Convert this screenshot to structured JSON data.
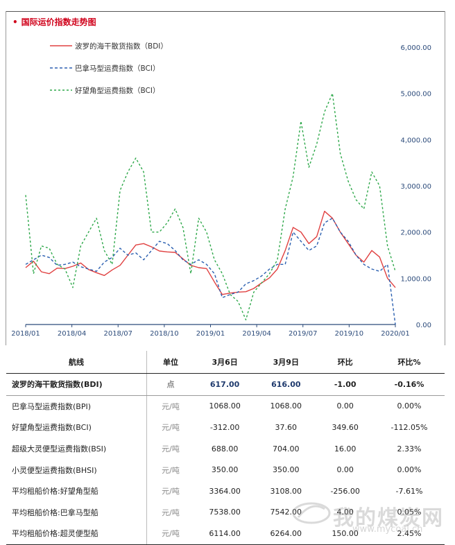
{
  "header": {
    "title": "国际运价指数走势图",
    "bullet": "•"
  },
  "chart_data": {
    "type": "line",
    "x_labels": [
      "2018/01",
      "2018/04",
      "2018/07",
      "2018/10",
      "2019/01",
      "2019/04",
      "2019/07",
      "2019/10",
      "2020/01"
    ],
    "ylim": [
      0,
      6000
    ],
    "y_ticks": [
      "0.00",
      "1,000.00",
      "2,000.00",
      "3,000.00",
      "4,000.00",
      "5,000.00",
      "6,000.00"
    ],
    "y_tick_values": [
      0,
      1000,
      2000,
      3000,
      4000,
      5000,
      6000
    ],
    "series": [
      {
        "name": "波罗的海干散货指数（BDI）",
        "color": "#e04040",
        "dash": "",
        "values": [
          1230,
          1370,
          1140,
          1100,
          1220,
          1210,
          1260,
          1330,
          1190,
          1120,
          1060,
          1180,
          1280,
          1500,
          1720,
          1750,
          1680,
          1590,
          1570,
          1560,
          1420,
          1280,
          1230,
          1210,
          920,
          650,
          680,
          700,
          710,
          780,
          900,
          1010,
          1200,
          1600,
          2100,
          2000,
          1750,
          1900,
          2450,
          2300,
          2000,
          1750,
          1500,
          1350,
          1600,
          1460,
          1000,
          800
        ]
      },
      {
        "name": "巴拿马型运费指数（BCI）",
        "color": "#2a5fb0",
        "dash": "4,3",
        "values": [
          1300,
          1400,
          1500,
          1450,
          1280,
          1300,
          1350,
          1250,
          1200,
          1150,
          1350,
          1450,
          1650,
          1500,
          1550,
          1400,
          1600,
          1800,
          1750,
          1600,
          1400,
          1300,
          1400,
          1300,
          1100,
          580,
          650,
          700,
          880,
          950,
          1050,
          1200,
          1300,
          1300,
          2000,
          1800,
          1600,
          1700,
          2200,
          2300,
          2000,
          1800,
          1500,
          1300,
          1200,
          1150,
          1300,
          0
        ]
      },
      {
        "name": "好望角型运费指数（BCI）",
        "color": "#2ea84a",
        "dash": "3,3",
        "values": [
          2800,
          1100,
          1700,
          1650,
          1300,
          1200,
          800,
          1700,
          2000,
          2300,
          1600,
          1300,
          2900,
          3300,
          3600,
          3300,
          2000,
          2000,
          2200,
          2500,
          2100,
          1100,
          2300,
          2000,
          1400,
          1100,
          650,
          500,
          100,
          700,
          900,
          1100,
          1400,
          2500,
          3200,
          4400,
          3400,
          3900,
          4600,
          5000,
          3700,
          3100,
          2700,
          2500,
          3300,
          3000,
          1700,
          1150
        ]
      }
    ]
  },
  "table": {
    "headers": [
      "航线",
      "单位",
      "3月6日",
      "3月9日",
      "环比",
      "环比%"
    ],
    "rows": [
      [
        "波罗的海干散货指数(BDI)",
        "点",
        "617.00",
        "616.00",
        "-1.00",
        "-0.16%"
      ],
      [
        "巴拿马型运费指数(BPI)",
        "元/吨",
        "1068.00",
        "1068.00",
        "0.00",
        "0.00%"
      ],
      [
        "好望角型运费指数(BCI)",
        "元/吨",
        "-312.00",
        "37.60",
        "349.60",
        "-112.05%"
      ],
      [
        "超级大灵便型运费指数(BSI)",
        "元/吨",
        "688.00",
        "704.00",
        "16.00",
        "2.33%"
      ],
      [
        "小灵便型运费指数(BHSI)",
        "元/吨",
        "350.00",
        "350.00",
        "0.00",
        "0.00%"
      ],
      [
        "平均租船价格:好望角型船",
        "元/吨",
        "3364.00",
        "3108.00",
        "-256.00",
        "-7.61%"
      ],
      [
        "平均租船价格:巴拿马型船",
        "元/吨",
        "7538.00",
        "7542.00",
        "4.00",
        "0.05%"
      ],
      [
        "平均租船价格:超灵便型船",
        "元/吨",
        "6114.00",
        "6264.00",
        "150.00",
        "2.45%"
      ]
    ]
  },
  "watermark": {
    "text": "我的煤炭网",
    "url": "www.mycoal.cn"
  }
}
